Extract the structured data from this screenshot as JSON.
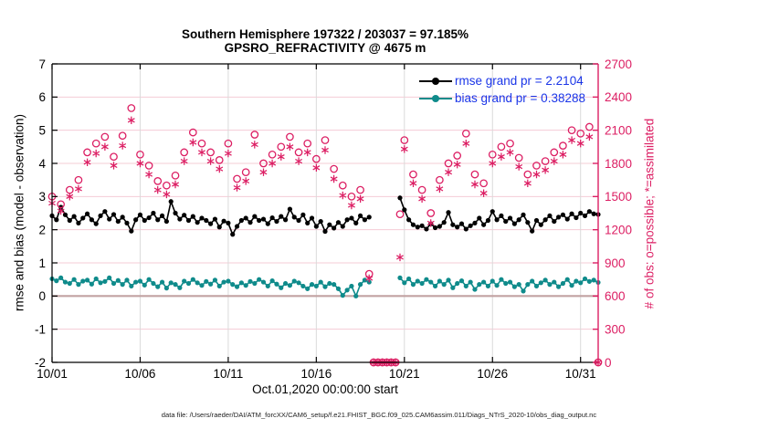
{
  "figure": {
    "title_line1": "Southern Hemisphere 197322 / 203037 = 97.185%",
    "title_line2": "GPSRO_REFRACTIVITY @ 4675 m",
    "footer": "data file: /Users/raeder/DAI/ATM_forcXX/CAM6_setup/f.e21.FHIST_BGC.f09_025.CAM6assim.011/Diags_NTrS_2020-10/obs_diag_output.nc"
  },
  "colors": {
    "rmse": "#000000",
    "bias": "#0f8b8b",
    "obs": "#dc1e63",
    "legend_text": "#1a35e8",
    "grid_h": "#f5ccd6",
    "grid_v": "#dadada",
    "zero_line": "#c2a2a2",
    "axis_left": "#000000",
    "axis_right": "#dc1e63"
  },
  "chart_data": {
    "type": "line",
    "title": "Southern Hemisphere 197322 / 203037 = 97.185%",
    "subtitle": "GPSRO_REFRACTIVITY @ 4675 m",
    "xlabel": "Oct.01,2020 00:00:00 start",
    "ylabel_left": "rmse and bias (model - observation)",
    "ylabel_right": "# of obs: o=possible; *=assimilated",
    "grid": true,
    "x_axis": {
      "min": 1,
      "max": 32,
      "ticks": [
        {
          "t": 1,
          "label": "10/01"
        },
        {
          "t": 6,
          "label": "10/06"
        },
        {
          "t": 11,
          "label": "10/11"
        },
        {
          "t": 16,
          "label": "10/16"
        },
        {
          "t": 21,
          "label": "10/21"
        },
        {
          "t": 26,
          "label": "10/26"
        },
        {
          "t": 31,
          "label": "10/31"
        }
      ]
    },
    "y_left": {
      "min": -2,
      "max": 7,
      "ticks": [
        -2,
        -1,
        0,
        1,
        2,
        3,
        4,
        5,
        6,
        7
      ]
    },
    "y_right": {
      "min": 0,
      "max": 2700,
      "ticks": [
        0,
        300,
        600,
        900,
        1200,
        1500,
        1800,
        2100,
        2400,
        2700
      ]
    },
    "legend": [
      {
        "label": "rmse grand pr = 2.2104",
        "color": "#000000"
      },
      {
        "label": "bias grand pr = 0.38288",
        "color": "#0f8b8b"
      }
    ],
    "rmse_grand_pr": 2.2104,
    "bias_grand_pr": 0.38288,
    "series": [
      {
        "name": "possible",
        "kind": "circle",
        "axis": "right",
        "color": "#dc1e63",
        "segments": [
          {
            "t0": 1.0,
            "dt": 0.5,
            "v": [
              1500,
              1430,
              1560,
              1650,
              1900,
              1980,
              2040,
              1860,
              2050,
              2300,
              1880,
              1780,
              1640,
              1600,
              1690,
              1900,
              2080,
              1980,
              1900,
              1830,
              1980,
              1660,
              1720,
              2060,
              1800,
              1880,
              1950,
              2040,
              1900,
              1980,
              1840,
              2010,
              1750,
              1600,
              1500,
              1560
            ]
          },
          {
            "t0": 19.0,
            "dt": 0.25,
            "v": [
              800,
              0,
              0,
              0,
              0,
              0,
              0
            ]
          },
          {
            "t0": 20.75,
            "dt": 0.25,
            "v": [
              1340
            ]
          },
          {
            "t0": 21.0,
            "dt": 0.5,
            "v": [
              2010,
              1700,
              1560,
              1350,
              1650,
              1800,
              1870,
              2070,
              1700,
              1620,
              1880,
              1950,
              1980,
              1850,
              1700,
              1780,
              1820,
              1900,
              1960,
              2100,
              2070,
              2130
            ]
          },
          {
            "t0": 32.0,
            "dt": 0.5,
            "v": [
              0
            ]
          }
        ]
      },
      {
        "name": "assimilated",
        "kind": "asterisk",
        "axis": "right",
        "color": "#dc1e63",
        "segments": [
          {
            "t0": 1.0,
            "dt": 0.5,
            "v": [
              1440,
              1370,
              1500,
              1570,
              1810,
              1890,
              1950,
              1780,
              1960,
              2190,
              1800,
              1700,
              1560,
              1520,
              1610,
              1820,
              1990,
              1900,
              1820,
              1750,
              1890,
              1580,
              1640,
              1970,
              1720,
              1800,
              1860,
              1950,
              1820,
              1900,
              1760,
              1920,
              1660,
              1510,
              1420,
              1480
            ]
          },
          {
            "t0": 19.0,
            "dt": 0.25,
            "v": [
              760,
              0,
              0,
              0,
              0,
              0,
              0
            ]
          },
          {
            "t0": 20.75,
            "dt": 0.25,
            "v": [
              950
            ]
          },
          {
            "t0": 21.0,
            "dt": 0.5,
            "v": [
              1930,
              1620,
              1480,
              1260,
              1570,
              1720,
              1790,
              1980,
              1610,
              1530,
              1800,
              1860,
              1900,
              1770,
              1620,
              1700,
              1740,
              1820,
              1880,
              2010,
              1980,
              2040
            ]
          },
          {
            "t0": 32.0,
            "dt": 0.5,
            "v": [
              0
            ]
          }
        ]
      },
      {
        "name": "rmse",
        "kind": "line",
        "axis": "left",
        "color": "#000000",
        "segments": [
          {
            "t0": 1.0,
            "dt": 0.25,
            "v": [
              2.42,
              2.3,
              2.68,
              2.45,
              2.28,
              2.4,
              2.2,
              2.35,
              2.48,
              2.3,
              2.18,
              2.42,
              2.55,
              2.32,
              2.46,
              2.25,
              2.38,
              2.2,
              1.96,
              2.3,
              2.45,
              2.28,
              2.36,
              2.5,
              2.3,
              2.42,
              2.25,
              2.85,
              2.5,
              2.32,
              2.44,
              2.28,
              2.4,
              2.22,
              2.35,
              2.28,
              2.18,
              2.32,
              2.08,
              2.26,
              2.2,
              1.86,
              2.1,
              2.28,
              2.35,
              2.22,
              2.4,
              2.28,
              2.32,
              2.18,
              2.36,
              2.25,
              2.4,
              2.3,
              2.62,
              2.38,
              2.28,
              2.45,
              2.2,
              2.35,
              2.1,
              2.25,
              1.95,
              2.15,
              2.05,
              2.22,
              2.1,
              2.3,
              2.35,
              2.2,
              2.42,
              2.3,
              2.38
            ]
          },
          {
            "t0": 20.75,
            "dt": 0.25,
            "v": [
              2.96,
              2.6,
              2.3,
              2.15,
              2.08,
              2.12,
              2.02,
              2.18,
              2.06,
              2.1,
              2.22,
              2.52,
              2.15,
              2.08,
              2.18,
              2.02,
              2.12,
              2.2,
              2.35,
              2.15,
              2.28,
              2.55,
              2.3,
              2.42,
              2.25,
              2.35,
              2.18,
              2.3,
              2.45,
              2.22,
              1.96,
              2.28,
              2.15,
              2.3,
              2.42,
              2.25,
              2.38,
              2.45,
              2.32,
              2.48,
              2.36,
              2.5,
              2.42,
              2.55,
              2.48,
              2.46
            ]
          }
        ]
      },
      {
        "name": "bias",
        "kind": "line",
        "axis": "left",
        "color": "#0f8b8b",
        "segments": [
          {
            "t0": 1.0,
            "dt": 0.25,
            "v": [
              0.52,
              0.46,
              0.55,
              0.42,
              0.38,
              0.5,
              0.35,
              0.45,
              0.48,
              0.36,
              0.52,
              0.4,
              0.44,
              0.55,
              0.38,
              0.47,
              0.35,
              0.48,
              0.3,
              0.42,
              0.45,
              0.33,
              0.5,
              0.38,
              0.28,
              0.42,
              0.24,
              0.4,
              0.35,
              0.25,
              0.45,
              0.38,
              0.5,
              0.4,
              0.32,
              0.44,
              0.36,
              0.48,
              0.3,
              0.42,
              0.45,
              0.35,
              0.28,
              0.4,
              0.32,
              0.44,
              0.38,
              0.5,
              0.42,
              0.3,
              0.46,
              0.36,
              0.25,
              0.38,
              0.32,
              0.45,
              0.4,
              0.3,
              0.22,
              0.35,
              0.3,
              0.42,
              0.28,
              0.38,
              0.35,
              0.22,
              0.02,
              0.18,
              0.3,
              0.0,
              0.35,
              0.48,
              0.42
            ]
          },
          {
            "t0": 20.75,
            "dt": 0.25,
            "v": [
              0.55,
              0.4,
              0.52,
              0.35,
              0.45,
              0.38,
              0.5,
              0.42,
              0.3,
              0.45,
              0.35,
              0.48,
              0.25,
              0.38,
              0.46,
              0.3,
              0.42,
              0.2,
              0.35,
              0.42,
              0.3,
              0.45,
              0.32,
              0.5,
              0.38,
              0.42,
              0.28,
              0.35,
              0.15,
              0.35,
              0.45,
              0.3,
              0.4,
              0.48,
              0.35,
              0.42,
              0.28,
              0.38,
              0.5,
              0.32,
              0.45,
              0.4,
              0.52,
              0.44,
              0.48,
              0.41
            ]
          }
        ]
      }
    ]
  }
}
